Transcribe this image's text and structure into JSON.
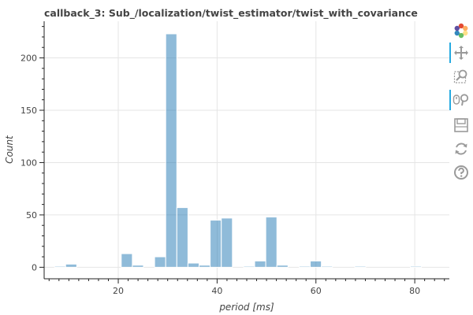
{
  "chart_data": {
    "type": "bar",
    "title": "callback_3: Sub_/localization/twist_estimator/twist_with_covariance",
    "xlabel": "period [ms]",
    "ylabel": "Count",
    "xlim": [
      5.0,
      87.0
    ],
    "ylim": [
      -11,
      235
    ],
    "xticks": [
      20,
      40,
      60,
      80
    ],
    "yticks": [
      0,
      50,
      100,
      150,
      200
    ],
    "grid": true,
    "color": "#1f77b4",
    "bin_width": 2.25,
    "bins": [
      {
        "x0": 7.1,
        "count": 1
      },
      {
        "x0": 9.35,
        "count": 3
      },
      {
        "x0": 11.6,
        "count": 0
      },
      {
        "x0": 13.85,
        "count": 0
      },
      {
        "x0": 16.1,
        "count": 0
      },
      {
        "x0": 18.35,
        "count": 0
      },
      {
        "x0": 20.6,
        "count": 13
      },
      {
        "x0": 22.85,
        "count": 2
      },
      {
        "x0": 25.1,
        "count": 0
      },
      {
        "x0": 27.35,
        "count": 10
      },
      {
        "x0": 29.6,
        "count": 223
      },
      {
        "x0": 31.85,
        "count": 57
      },
      {
        "x0": 34.1,
        "count": 4
      },
      {
        "x0": 36.35,
        "count": 2
      },
      {
        "x0": 38.6,
        "count": 45
      },
      {
        "x0": 40.85,
        "count": 47
      },
      {
        "x0": 43.1,
        "count": 0
      },
      {
        "x0": 45.35,
        "count": 1
      },
      {
        "x0": 47.6,
        "count": 6
      },
      {
        "x0": 49.85,
        "count": 48
      },
      {
        "x0": 52.1,
        "count": 2
      },
      {
        "x0": 54.35,
        "count": 0
      },
      {
        "x0": 56.6,
        "count": 1
      },
      {
        "x0": 58.85,
        "count": 6
      },
      {
        "x0": 61.1,
        "count": 1
      },
      {
        "x0": 63.35,
        "count": 0
      },
      {
        "x0": 65.6,
        "count": 0
      },
      {
        "x0": 67.85,
        "count": 1
      },
      {
        "x0": 70.1,
        "count": 0
      },
      {
        "x0": 72.35,
        "count": 0
      },
      {
        "x0": 74.6,
        "count": 0
      },
      {
        "x0": 76.85,
        "count": 0
      },
      {
        "x0": 79.1,
        "count": 1
      },
      {
        "x0": 81.35,
        "count": 0
      },
      {
        "x0": 83.6,
        "count": 0
      }
    ]
  },
  "toolbar": {
    "items": [
      {
        "name": "bokeh-logo-icon",
        "active": false
      },
      {
        "name": "pan-icon",
        "active": true
      },
      {
        "name": "box-zoom-icon",
        "active": false
      },
      {
        "name": "wheel-zoom-icon",
        "active": true
      },
      {
        "name": "save-icon",
        "active": false
      },
      {
        "name": "reset-icon",
        "active": false
      },
      {
        "name": "help-icon",
        "active": false
      }
    ],
    "icon_color": "#9a9a9a"
  }
}
